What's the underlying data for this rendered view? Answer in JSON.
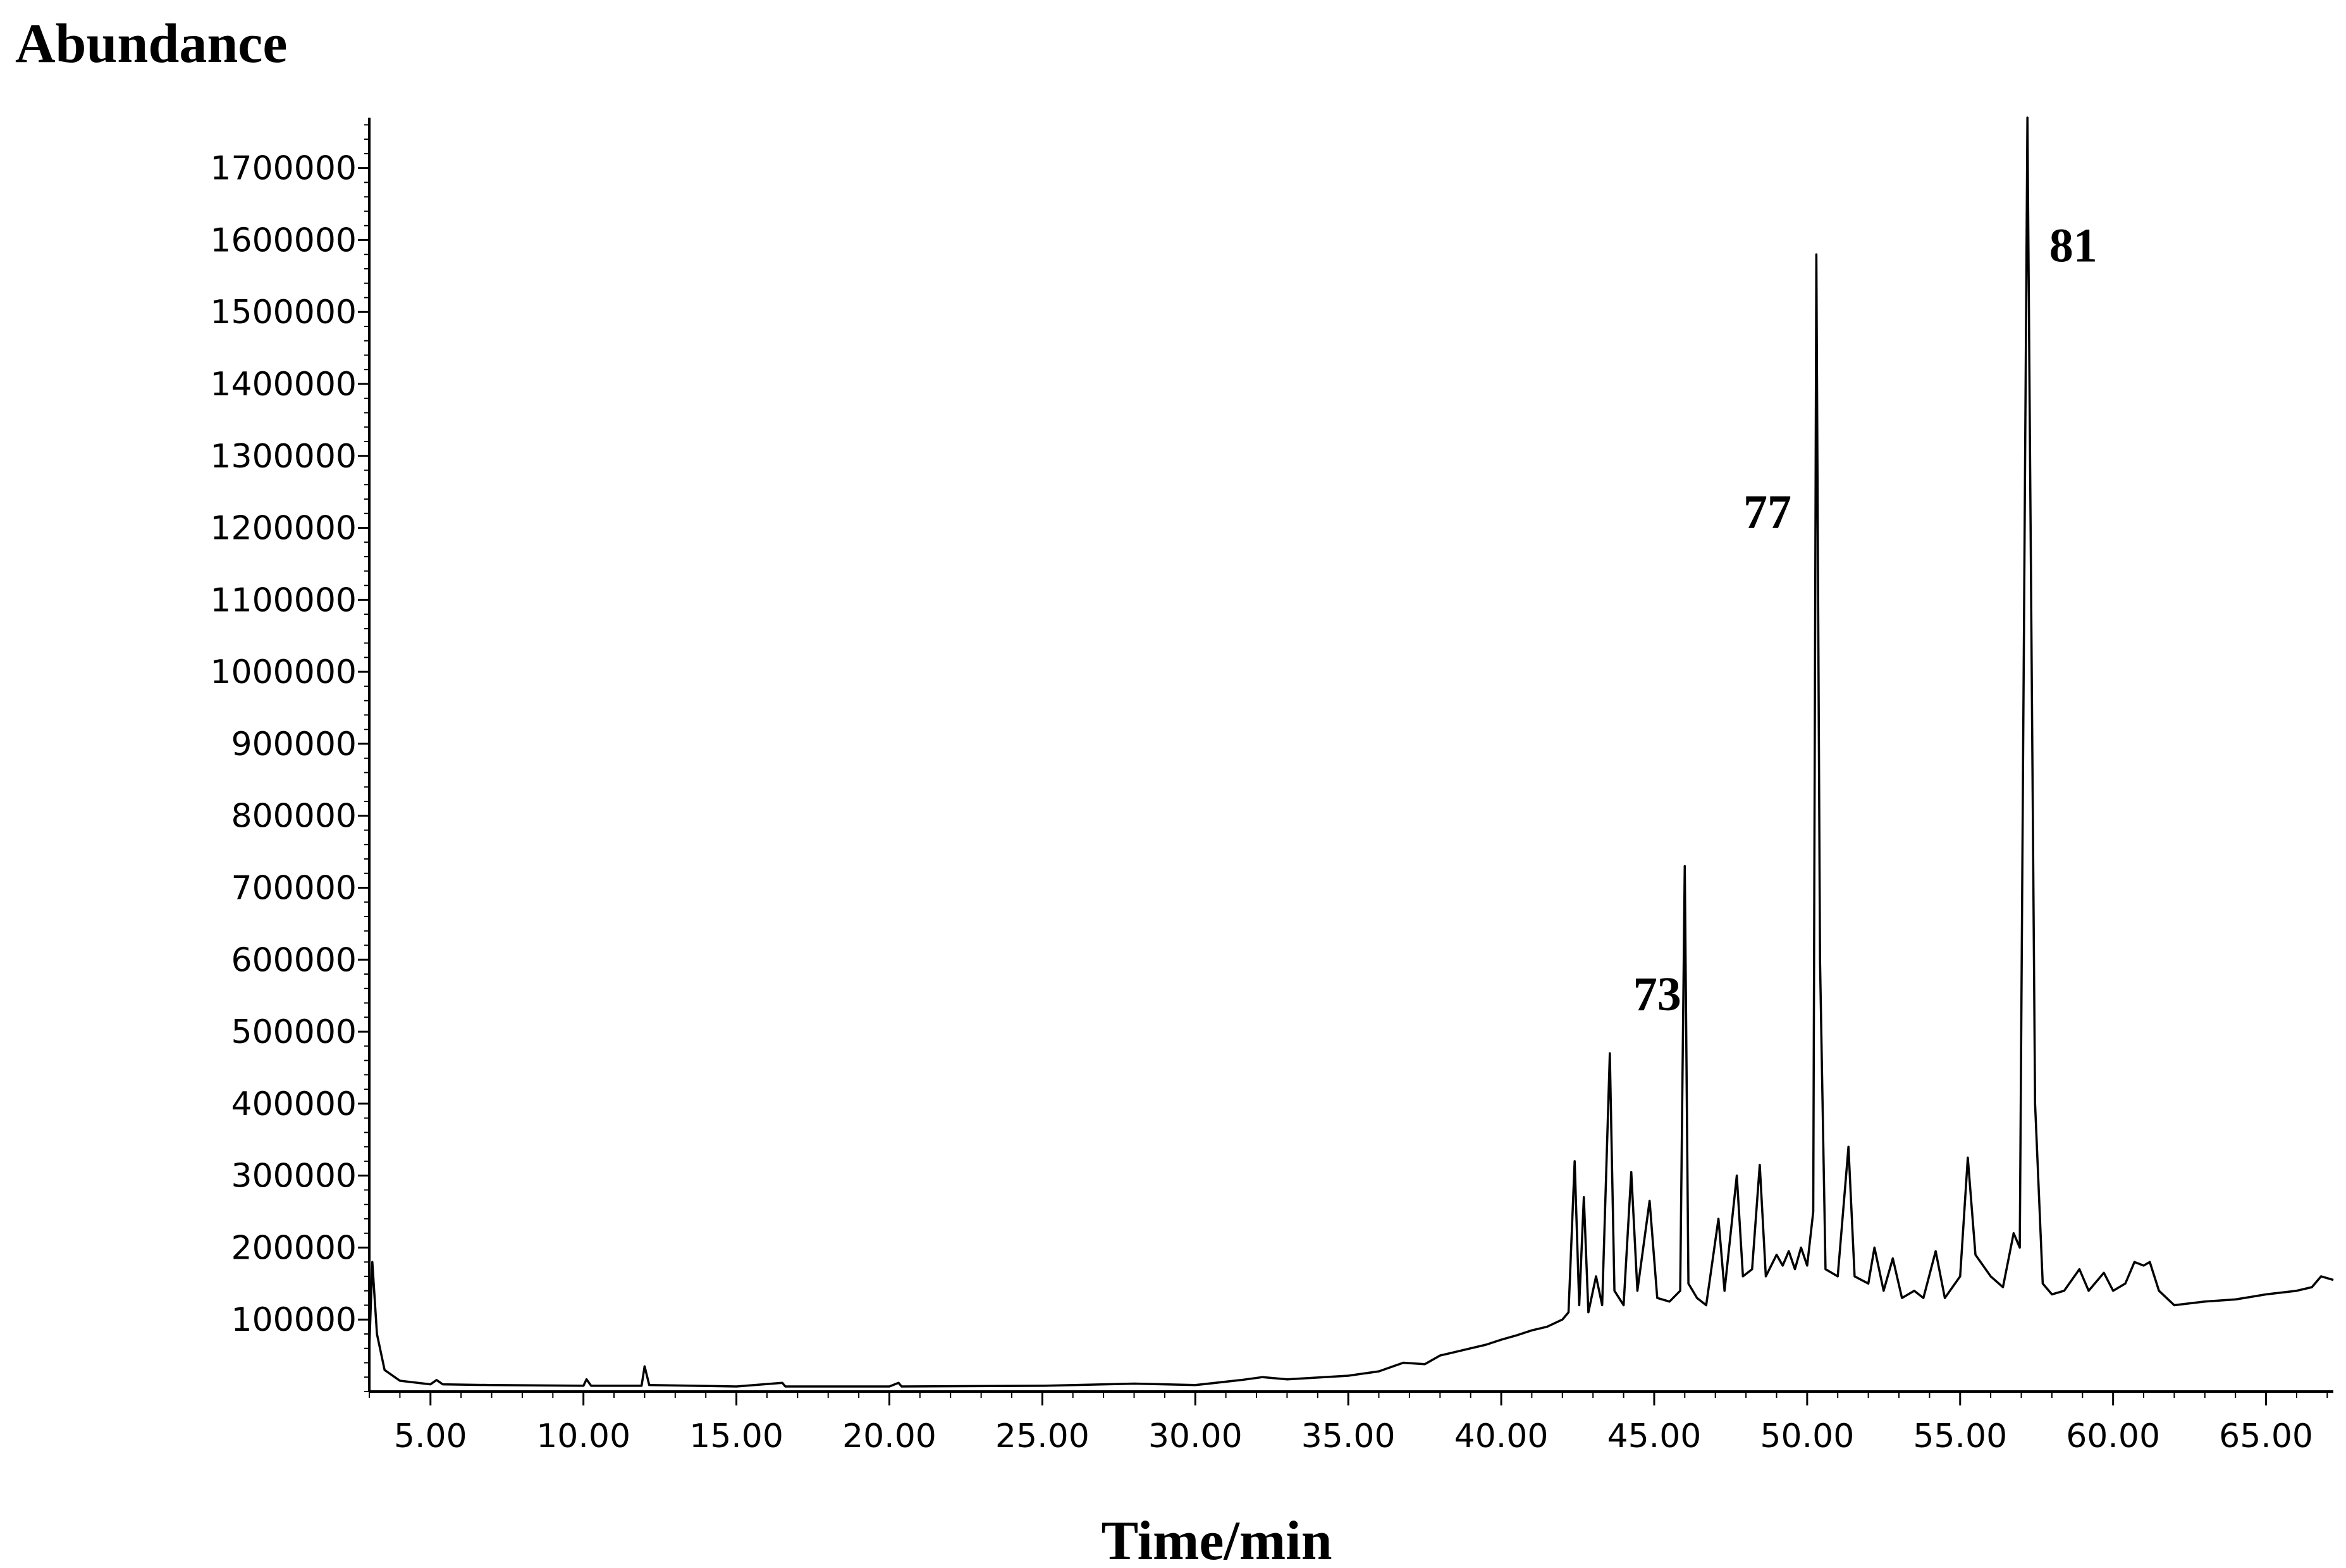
{
  "chart_data": {
    "type": "line",
    "ylabel": "Abundance",
    "xlabel": "Time/min",
    "xlim": [
      3.0,
      67.2
    ],
    "ylim": [
      0,
      1770000
    ],
    "x_ticks": [
      {
        "value": 5,
        "label": "5.00"
      },
      {
        "value": 10,
        "label": "10.00"
      },
      {
        "value": 15,
        "label": "15.00"
      },
      {
        "value": 20,
        "label": "20.00"
      },
      {
        "value": 25,
        "label": "25.00"
      },
      {
        "value": 30,
        "label": "30.00"
      },
      {
        "value": 35,
        "label": "35.00"
      },
      {
        "value": 40,
        "label": "40.00"
      },
      {
        "value": 45,
        "label": "45.00"
      },
      {
        "value": 50,
        "label": "50.00"
      },
      {
        "value": 55,
        "label": "55.00"
      },
      {
        "value": 60,
        "label": "60.00"
      },
      {
        "value": 65,
        "label": "65.00"
      }
    ],
    "y_ticks": [
      {
        "value": 100000,
        "label": "100000"
      },
      {
        "value": 200000,
        "label": "200000"
      },
      {
        "value": 300000,
        "label": "300000"
      },
      {
        "value": 400000,
        "label": "400000"
      },
      {
        "value": 500000,
        "label": "500000"
      },
      {
        "value": 600000,
        "label": "600000"
      },
      {
        "value": 700000,
        "label": "700000"
      },
      {
        "value": 800000,
        "label": "800000"
      },
      {
        "value": 900000,
        "label": "900000"
      },
      {
        "value": 1000000,
        "label": "1000000"
      },
      {
        "value": 1100000,
        "label": "1100000"
      },
      {
        "value": 1200000,
        "label": "1200000"
      },
      {
        "value": 1300000,
        "label": "1300000"
      },
      {
        "value": 1400000,
        "label": "1400000"
      },
      {
        "value": 1500000,
        "label": "1500000"
      },
      {
        "value": 1600000,
        "label": "1600000"
      },
      {
        "value": 1700000,
        "label": "1700000"
      }
    ],
    "series": [
      {
        "color": "#000000",
        "points": [
          [
            3.0,
            60000
          ],
          [
            3.1,
            180000
          ],
          [
            3.25,
            80000
          ],
          [
            3.5,
            30000
          ],
          [
            4.0,
            15000
          ],
          [
            5.0,
            10000
          ],
          [
            5.2,
            16000
          ],
          [
            5.4,
            10000
          ],
          [
            7.0,
            9000
          ],
          [
            10.0,
            8000
          ],
          [
            10.1,
            17000
          ],
          [
            10.25,
            8000
          ],
          [
            11.9,
            8000
          ],
          [
            12.0,
            35000
          ],
          [
            12.15,
            9000
          ],
          [
            15.0,
            7000
          ],
          [
            16.5,
            12000
          ],
          [
            16.6,
            7000
          ],
          [
            20.0,
            7000
          ],
          [
            20.3,
            12000
          ],
          [
            20.4,
            7000
          ],
          [
            25.0,
            8000
          ],
          [
            28.0,
            11000
          ],
          [
            30.0,
            9000
          ],
          [
            31.5,
            16000
          ],
          [
            32.2,
            20000
          ],
          [
            33.0,
            17000
          ],
          [
            35.0,
            22000
          ],
          [
            36.0,
            28000
          ],
          [
            36.8,
            40000
          ],
          [
            37.5,
            38000
          ],
          [
            38.0,
            50000
          ],
          [
            38.5,
            55000
          ],
          [
            39.0,
            60000
          ],
          [
            39.5,
            65000
          ],
          [
            40.0,
            72000
          ],
          [
            40.5,
            78000
          ],
          [
            41.0,
            85000
          ],
          [
            41.5,
            90000
          ],
          [
            42.0,
            100000
          ],
          [
            42.2,
            110000
          ],
          [
            42.4,
            320000
          ],
          [
            42.55,
            120000
          ],
          [
            42.7,
            270000
          ],
          [
            42.85,
            110000
          ],
          [
            43.1,
            160000
          ],
          [
            43.3,
            120000
          ],
          [
            43.55,
            470000
          ],
          [
            43.7,
            140000
          ],
          [
            44.0,
            120000
          ],
          [
            44.25,
            305000
          ],
          [
            44.45,
            140000
          ],
          [
            44.85,
            265000
          ],
          [
            45.1,
            130000
          ],
          [
            45.5,
            125000
          ],
          [
            45.85,
            140000
          ],
          [
            46.0,
            730000
          ],
          [
            46.12,
            150000
          ],
          [
            46.4,
            130000
          ],
          [
            46.7,
            120000
          ],
          [
            47.1,
            240000
          ],
          [
            47.3,
            140000
          ],
          [
            47.7,
            300000
          ],
          [
            47.9,
            160000
          ],
          [
            48.2,
            170000
          ],
          [
            48.45,
            315000
          ],
          [
            48.65,
            160000
          ],
          [
            49.0,
            190000
          ],
          [
            49.2,
            175000
          ],
          [
            49.4,
            195000
          ],
          [
            49.6,
            170000
          ],
          [
            49.8,
            200000
          ],
          [
            50.0,
            175000
          ],
          [
            50.2,
            250000
          ],
          [
            50.3,
            1580000
          ],
          [
            50.42,
            600000
          ],
          [
            50.6,
            170000
          ],
          [
            51.0,
            160000
          ],
          [
            51.35,
            340000
          ],
          [
            51.55,
            160000
          ],
          [
            52.0,
            150000
          ],
          [
            52.2,
            200000
          ],
          [
            52.5,
            140000
          ],
          [
            52.8,
            185000
          ],
          [
            53.1,
            130000
          ],
          [
            53.5,
            140000
          ],
          [
            53.8,
            130000
          ],
          [
            54.2,
            195000
          ],
          [
            54.5,
            130000
          ],
          [
            55.0,
            160000
          ],
          [
            55.25,
            325000
          ],
          [
            55.5,
            190000
          ],
          [
            56.0,
            160000
          ],
          [
            56.4,
            145000
          ],
          [
            56.75,
            220000
          ],
          [
            56.95,
            200000
          ],
          [
            57.2,
            1770000
          ],
          [
            57.45,
            400000
          ],
          [
            57.7,
            150000
          ],
          [
            58.0,
            135000
          ],
          [
            58.4,
            140000
          ],
          [
            58.9,
            170000
          ],
          [
            59.2,
            140000
          ],
          [
            59.7,
            165000
          ],
          [
            60.0,
            140000
          ],
          [
            60.4,
            150000
          ],
          [
            60.7,
            180000
          ],
          [
            61.0,
            175000
          ],
          [
            61.2,
            180000
          ],
          [
            61.5,
            140000
          ],
          [
            62.0,
            120000
          ],
          [
            63.0,
            125000
          ],
          [
            64.0,
            128000
          ],
          [
            65.0,
            135000
          ],
          [
            66.0,
            140000
          ],
          [
            66.5,
            145000
          ],
          [
            66.8,
            160000
          ],
          [
            67.2,
            155000
          ]
        ]
      }
    ],
    "annotations": [
      {
        "text": "73",
        "x": 45.1,
        "y": 530000
      },
      {
        "text": "77",
        "x": 48.7,
        "y": 1200000
      },
      {
        "text": "81",
        "x": 58.7,
        "y": 1570000
      }
    ],
    "grid": false,
    "legend": "none"
  }
}
